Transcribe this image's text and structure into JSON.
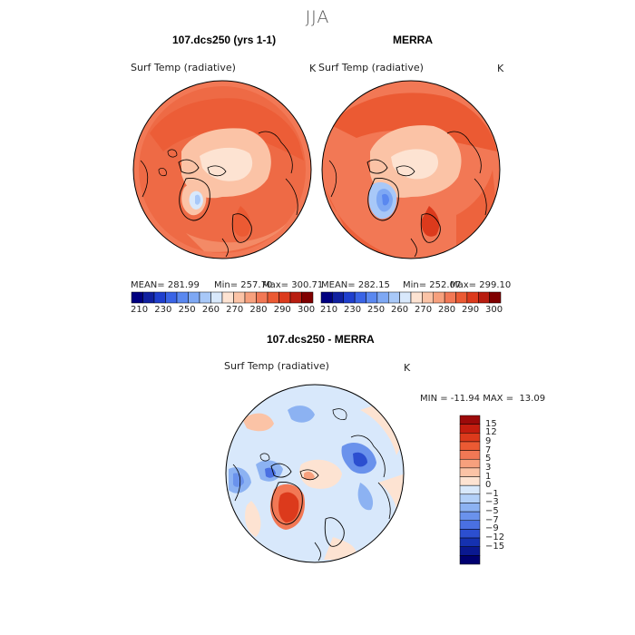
{
  "season": "JJA",
  "panels": [
    {
      "title": "107.dcs250 (yrs 1-1)",
      "variable": "Surf Temp (radiative)",
      "units": "K",
      "stats": {
        "mean": "MEAN= 281.99",
        "min": "Min= 257.70",
        "max": "Max= 300.71"
      }
    },
    {
      "title": "MERRA",
      "variable": "Surf Temp (radiative)",
      "units": "K",
      "stats": {
        "mean": "MEAN= 282.15",
        "min": "Min= 252.07",
        "max": "Max= 299.10"
      }
    }
  ],
  "abs_colorbar": {
    "colors": [
      "#000080",
      "#1020a0",
      "#1f3fce",
      "#3a64e6",
      "#5a88f0",
      "#7ea8f4",
      "#a8c8f8",
      "#d8e8fb",
      "#fde3d2",
      "#fbc3a6",
      "#f7a07d",
      "#f27855",
      "#eb5a33",
      "#dc3a1c",
      "#b81d10",
      "#800000"
    ],
    "labels": [
      "210",
      "230",
      "250",
      "260",
      "270",
      "280",
      "290",
      "300"
    ]
  },
  "diff_panel": {
    "title": "107.dcs250 - MERRA",
    "variable": "Surf Temp (radiative)",
    "units": "K",
    "minmax": "MIN = -11.94 MAX =  13.09"
  },
  "diff_colorbar": {
    "colors": [
      "#9c0a0a",
      "#c41d0f",
      "#dc3a1c",
      "#eb5a33",
      "#f27855",
      "#f7a07d",
      "#fbc3a6",
      "#fde3d2",
      "#d8e8fb",
      "#b3d0f8",
      "#8cb2f2",
      "#6a92ec",
      "#4a70e2",
      "#2c4fd0",
      "#1531b0",
      "#0a1890",
      "#000070"
    ],
    "labels": [
      "15",
      "12",
      "9",
      "7",
      "5",
      "3",
      "1",
      "0",
      "−1",
      "−3",
      "−5",
      "−7",
      "−9",
      "−12",
      "−15"
    ]
  }
}
